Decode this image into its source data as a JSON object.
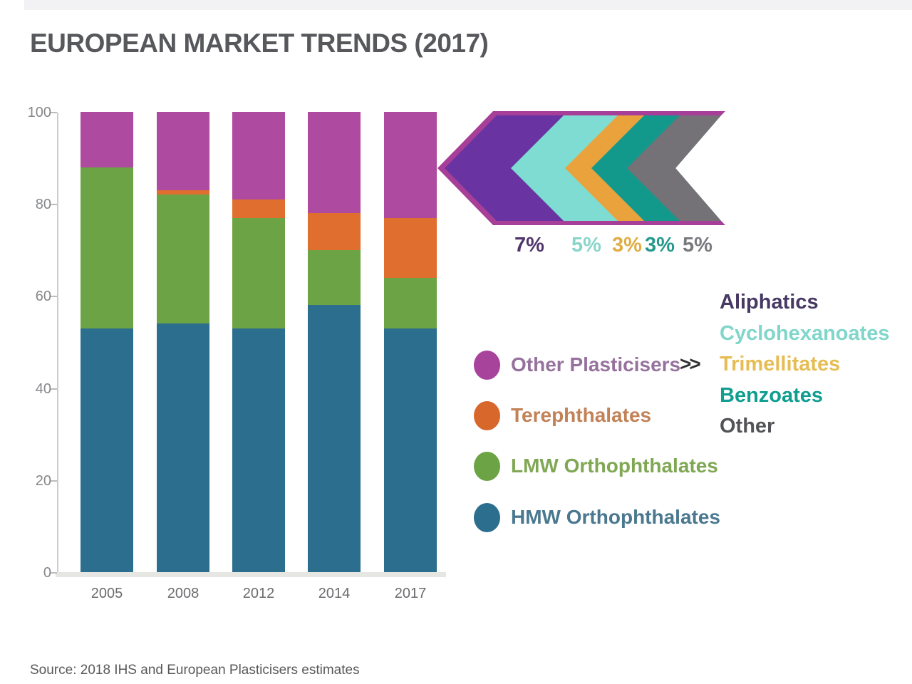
{
  "title": "EUROPEAN MARKET TRENDS (2017)",
  "source": "Source: 2018 IHS and European Plasticisers estimates",
  "colors": {
    "hmw": "#2c6e8e",
    "lmw": "#6ca344",
    "terephthalates": "#e06e2e",
    "other_plasticisers": "#ae4ba0",
    "arrow_outline": "#a73f99",
    "axis_line": "#cccccc",
    "tick_text": "#85878a"
  },
  "chart_data": {
    "type": "bar",
    "stacked": true,
    "title": "European plasticiser market share by year (%)",
    "categories": [
      "2005",
      "2008",
      "2012",
      "2014",
      "2017"
    ],
    "series": [
      {
        "name": "HMW Orthophthalates",
        "color": "#2c6e8e",
        "values": [
          53,
          54,
          53,
          58,
          53
        ]
      },
      {
        "name": "LMW Orthophthalates",
        "color": "#6ca344",
        "values": [
          35,
          28,
          24,
          12,
          11
        ]
      },
      {
        "name": "Terephthalates",
        "color": "#e06e2e",
        "values": [
          0,
          1,
          4,
          8,
          13
        ]
      },
      {
        "name": "Other Plasticisers",
        "color": "#ae4ba0",
        "values": [
          12,
          17,
          19,
          22,
          23
        ]
      }
    ],
    "ylim": [
      0,
      100
    ],
    "yticks": [
      0,
      20,
      40,
      60,
      80,
      100
    ],
    "grid": false,
    "legend_position": "right"
  },
  "legend": {
    "items": [
      {
        "label": "Other Plasticisers",
        "dot_color": "#a8439c",
        "text_color": "#96719d"
      },
      {
        "label": "Terephthalates",
        "dot_color": "#d8672c",
        "text_color": "#c28257"
      },
      {
        "label": "LMW Orthophthalates",
        "dot_color": "#6ca344",
        "text_color": "#80a854"
      },
      {
        "label": "HMW Orthophthalates",
        "dot_color": "#2c6e8e",
        "text_color": "#49788f"
      }
    ],
    "chevron_label": ">>"
  },
  "arrow": {
    "breakdown": [
      {
        "label": "Aliphatics",
        "pct": "7%",
        "fill": "#6934a2",
        "label_color": "#473963",
        "pct_color": "#4f356b"
      },
      {
        "label": "Cyclohexanoates",
        "pct": "5%",
        "fill": "#7edcd2",
        "label_color": "#80d6ca",
        "pct_color": "#8ad5ca"
      },
      {
        "label": "Trimellitates",
        "pct": "3%",
        "fill": "#eaa23c",
        "label_color": "#e6bd55",
        "pct_color": "#dfae43"
      },
      {
        "label": "Benzoates",
        "pct": "3%",
        "fill": "#13998c",
        "label_color": "#0f9e90",
        "pct_color": "#27998c"
      },
      {
        "label": "Other",
        "pct": "5%",
        "fill": "#747276",
        "label_color": "#525356",
        "pct_color": "#7b797e"
      }
    ]
  }
}
